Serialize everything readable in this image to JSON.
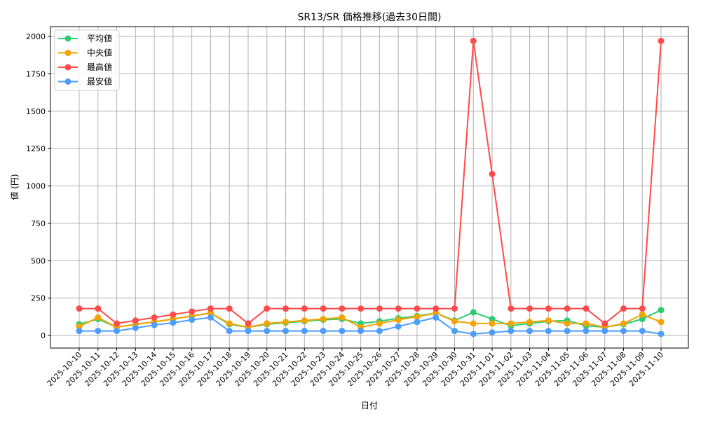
{
  "chart_data": {
    "type": "line",
    "title": "SR13/SR 価格推移(過去30日間)",
    "xlabel": "日付",
    "ylabel": "値 (円)",
    "ylim": [
      -90,
      2065
    ],
    "yticks": [
      0,
      250,
      500,
      750,
      1000,
      1250,
      1500,
      1750,
      2000
    ],
    "grid": true,
    "legend_position": "top-left",
    "x": [
      "2025-10-10",
      "2025-10-11",
      "2025-10-12",
      "2025-10-13",
      "2025-10-14",
      "2025-10-15",
      "2025-10-16",
      "2025-10-17",
      "2025-10-18",
      "2025-10-19",
      "2025-10-20",
      "2025-10-21",
      "2025-10-22",
      "2025-10-23",
      "2025-10-24",
      "2025-10-25",
      "2025-10-26",
      "2025-10-27",
      "2025-10-28",
      "2025-10-29",
      "2025-10-30",
      "2025-10-31",
      "2025-11-01",
      "2025-11-02",
      "2025-11-03",
      "2025-11-04",
      "2025-11-05",
      "2025-11-06",
      "2025-11-07",
      "2025-11-08",
      "2025-11-09",
      "2025-11-10"
    ],
    "series": [
      {
        "name": "平均値",
        "color": "#2ecc71",
        "values": [
          75,
          110,
          55,
          75,
          90,
          110,
          130,
          150,
          75,
          55,
          75,
          85,
          95,
          105,
          110,
          80,
          95,
          115,
          130,
          150,
          100,
          155,
          110,
          65,
          80,
          95,
          100,
          65,
          55,
          75,
          110,
          170
        ]
      },
      {
        "name": "中央値",
        "color": "#f5a300",
        "values": [
          60,
          120,
          55,
          75,
          90,
          110,
          130,
          150,
          80,
          55,
          80,
          90,
          100,
          110,
          120,
          55,
          80,
          105,
          125,
          150,
          95,
          80,
          80,
          80,
          90,
          100,
          80,
          80,
          55,
          80,
          140,
          90
        ]
      },
      {
        "name": "最高値",
        "color": "#ff4b4b",
        "values": [
          180,
          180,
          80,
          100,
          120,
          140,
          160,
          180,
          180,
          80,
          180,
          180,
          180,
          180,
          180,
          180,
          180,
          180,
          180,
          180,
          180,
          1970,
          1080,
          180,
          180,
          180,
          180,
          180,
          80,
          180,
          180,
          1970
        ]
      },
      {
        "name": "最安値",
        "color": "#4d9dff",
        "values": [
          30,
          30,
          30,
          50,
          70,
          85,
          105,
          120,
          30,
          30,
          30,
          30,
          30,
          30,
          30,
          30,
          30,
          60,
          90,
          120,
          30,
          10,
          20,
          30,
          30,
          30,
          30,
          30,
          30,
          30,
          30,
          10
        ]
      }
    ]
  }
}
